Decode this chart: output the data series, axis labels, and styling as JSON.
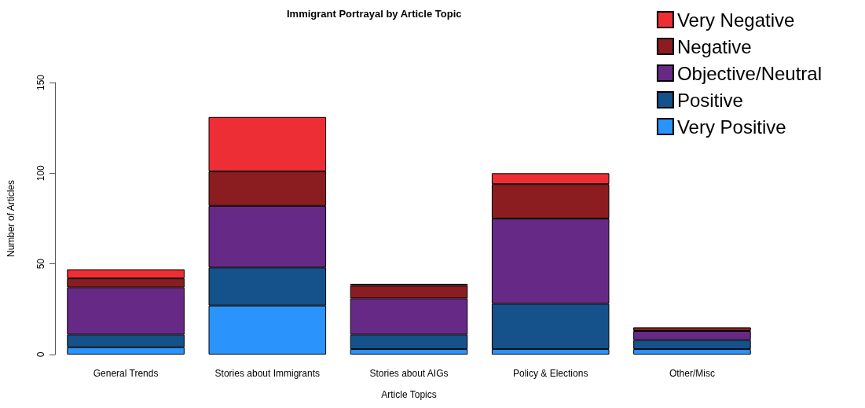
{
  "chart_data": {
    "type": "bar",
    "title": "Immigrant Portrayal by Article Topic",
    "xlabel": "Article Topics",
    "ylabel": "Number of Articles",
    "categories": [
      "General Trends",
      "Stories about Immigrants",
      "Stories about AIGs",
      "Policy & Elections",
      "Other/Misc"
    ],
    "stacked": true,
    "ylim": [
      0,
      150
    ],
    "yticks": [
      0,
      50,
      100,
      150
    ],
    "grid": false,
    "legend": "top right",
    "series": [
      {
        "name": "Very Positive",
        "color": "#2a93fc",
        "values": [
          4,
          27,
          3,
          3,
          3
        ]
      },
      {
        "name": "Positive",
        "color": "#15518a",
        "values": [
          7,
          21,
          8,
          25,
          5
        ]
      },
      {
        "name": "Objective/Neutral",
        "color": "#662a86",
        "values": [
          26,
          34,
          20,
          47,
          5
        ]
      },
      {
        "name": "Negative",
        "color": "#8b1c20",
        "values": [
          5,
          19,
          7,
          19,
          2
        ]
      },
      {
        "name": "Very Negative",
        "color": "#ee2e35",
        "values": [
          5,
          30,
          1,
          6,
          0
        ]
      }
    ]
  }
}
